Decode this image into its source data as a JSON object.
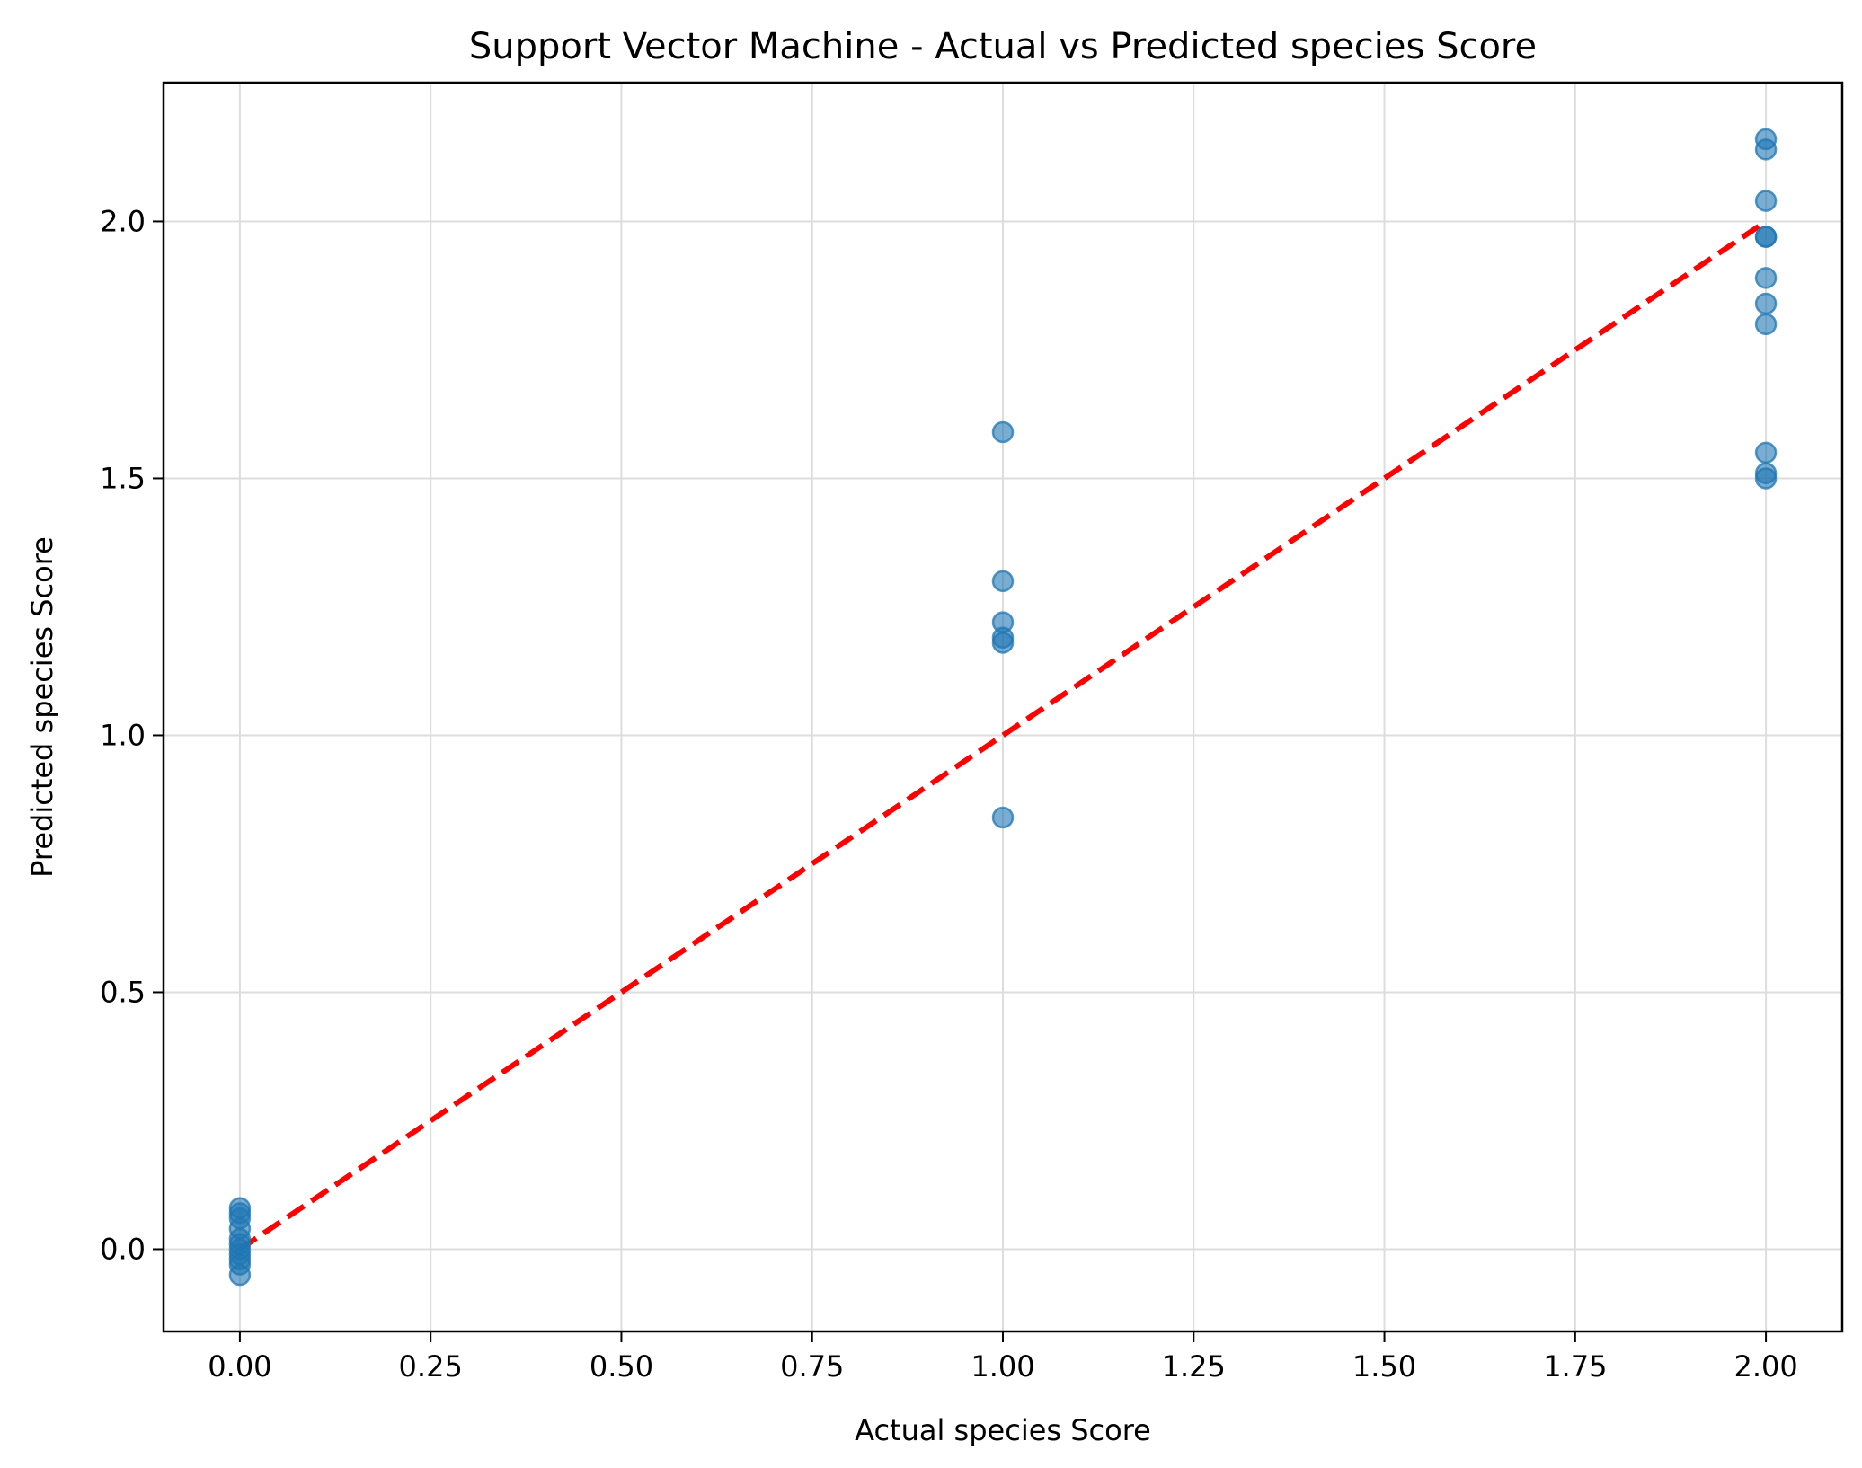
{
  "chart_data": {
    "type": "scatter",
    "title": "Support Vector Machine - Actual vs Predicted species Score",
    "xlabel": "Actual species Score",
    "ylabel": "Predicted species Score",
    "xlim": [
      -0.1,
      2.1
    ],
    "ylim": [
      -0.16,
      2.27
    ],
    "x_ticks": [
      0.0,
      0.25,
      0.5,
      0.75,
      1.0,
      1.25,
      1.5,
      1.75,
      2.0
    ],
    "x_tick_labels": [
      "0.00",
      "0.25",
      "0.50",
      "0.75",
      "1.00",
      "1.25",
      "1.50",
      "1.75",
      "2.00"
    ],
    "y_ticks": [
      0.0,
      0.5,
      1.0,
      1.5,
      2.0
    ],
    "y_tick_labels": [
      "0.0",
      "0.5",
      "1.0",
      "1.5",
      "2.0"
    ],
    "grid": true,
    "points": [
      {
        "x": 0,
        "y": 0.08
      },
      {
        "x": 0,
        "y": 0.07
      },
      {
        "x": 0,
        "y": 0.06
      },
      {
        "x": 0,
        "y": 0.04
      },
      {
        "x": 0,
        "y": 0.02
      },
      {
        "x": 0,
        "y": 0.01
      },
      {
        "x": 0,
        "y": 0.0
      },
      {
        "x": 0,
        "y": -0.01
      },
      {
        "x": 0,
        "y": -0.02
      },
      {
        "x": 0,
        "y": -0.03
      },
      {
        "x": 0,
        "y": -0.05
      },
      {
        "x": 1,
        "y": 1.59
      },
      {
        "x": 1,
        "y": 1.3
      },
      {
        "x": 1,
        "y": 1.22
      },
      {
        "x": 1,
        "y": 1.19
      },
      {
        "x": 1,
        "y": 1.18
      },
      {
        "x": 1,
        "y": 0.84
      },
      {
        "x": 2,
        "y": 2.16
      },
      {
        "x": 2,
        "y": 2.14
      },
      {
        "x": 2,
        "y": 2.04
      },
      {
        "x": 2,
        "y": 1.97
      },
      {
        "x": 2,
        "y": 1.97
      },
      {
        "x": 2,
        "y": 1.89
      },
      {
        "x": 2,
        "y": 1.84
      },
      {
        "x": 2,
        "y": 1.8
      },
      {
        "x": 2,
        "y": 1.55
      },
      {
        "x": 2,
        "y": 1.51
      },
      {
        "x": 2,
        "y": 1.5
      }
    ],
    "reference_line": {
      "x": [
        0,
        2
      ],
      "y": [
        0,
        2
      ],
      "style": "dashed"
    },
    "colors": {
      "points": "#1f77b4",
      "reference_line": "#ff0000",
      "grid": "#dddddd"
    }
  }
}
